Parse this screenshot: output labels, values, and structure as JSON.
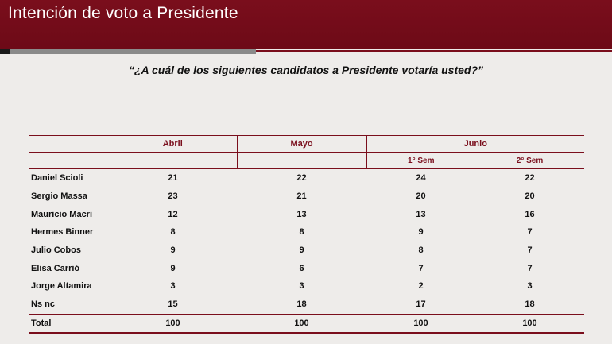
{
  "header": {
    "title": "Intención de voto a Presidente"
  },
  "question": "“¿A cuál de los siguientes candidatos a Presidente votaría usted?”",
  "table": {
    "columns": {
      "abril": "Abril",
      "mayo": "Mayo",
      "junio": "Junio",
      "sem1": "1° Sem",
      "sem2": "2° Sem"
    },
    "rows": [
      {
        "name": "Daniel Scioli",
        "abril": "21",
        "mayo": "22",
        "sem1": "24",
        "sem2": "22"
      },
      {
        "name": "Sergio Massa",
        "abril": "23",
        "mayo": "21",
        "sem1": "20",
        "sem2": "20"
      },
      {
        "name": "Mauricio Macri",
        "abril": "12",
        "mayo": "13",
        "sem1": "13",
        "sem2": "16"
      },
      {
        "name": "Hermes Binner",
        "abril": "8",
        "mayo": "8",
        "sem1": "9",
        "sem2": "7"
      },
      {
        "name": "Julio Cobos",
        "abril": "9",
        "mayo": "9",
        "sem1": "8",
        "sem2": "7"
      },
      {
        "name": "Elisa Carrió",
        "abril": "9",
        "mayo": "6",
        "sem1": "7",
        "sem2": "7"
      },
      {
        "name": "Jorge Altamira",
        "abril": "3",
        "mayo": "3",
        "sem1": "2",
        "sem2": "3"
      },
      {
        "name": "Ns nc",
        "abril": "15",
        "mayo": "18",
        "sem1": "17",
        "sem2": "18"
      }
    ],
    "total": {
      "name": "Total",
      "abril": "100",
      "mayo": "100",
      "sem1": "100",
      "sem2": "100"
    }
  },
  "colors": {
    "brand": "#7a0e1c",
    "background": "#eeecea"
  }
}
